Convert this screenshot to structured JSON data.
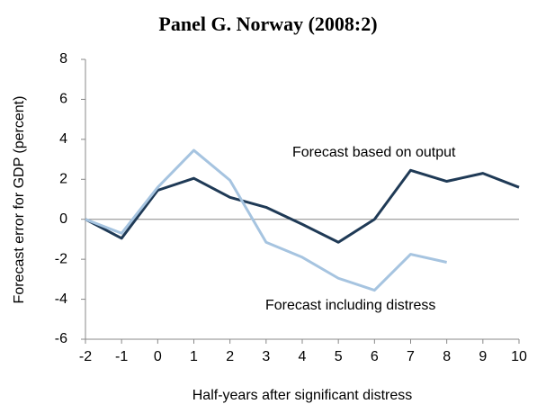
{
  "chart_data": {
    "type": "line",
    "title": "Panel G.  Norway (2008:2)",
    "x_label": "Half-years after significant distress",
    "y_label": "Forecast error for GDP (percent)",
    "x": [
      -2,
      -1,
      0,
      1,
      2,
      3,
      4,
      5,
      6,
      7,
      8,
      9,
      10
    ],
    "series": [
      {
        "name": "Forecast based on output",
        "color": "#1f3a56",
        "values": [
          0,
          -0.95,
          1.45,
          2.05,
          1.1,
          0.6,
          -0.25,
          -1.15,
          0,
          2.45,
          1.9,
          2.3,
          1.6
        ]
      },
      {
        "name": "Forecast including distress",
        "color": "#a6c4e0",
        "values": [
          0,
          -0.7,
          1.6,
          3.45,
          1.95,
          -1.15,
          -1.9,
          -2.95,
          -3.55,
          -1.75,
          -2.15,
          null,
          null
        ]
      }
    ],
    "xlim": [
      -2,
      10
    ],
    "xticks": [
      -2,
      -1,
      0,
      1,
      2,
      3,
      4,
      5,
      6,
      7,
      8,
      9,
      10
    ],
    "ylim": [
      -6,
      8
    ],
    "yticks": [
      -6,
      -4,
      -2,
      0,
      2,
      4,
      6,
      8
    ],
    "grid": false
  }
}
